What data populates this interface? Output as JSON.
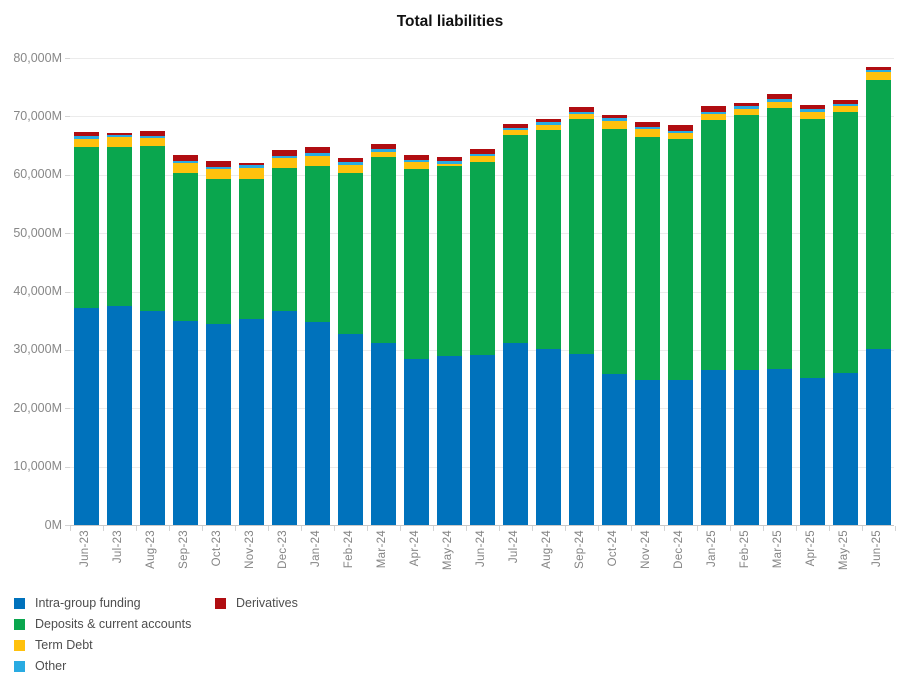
{
  "title": "Total liabilities",
  "chart_data": {
    "type": "bar",
    "stacked": true,
    "title": "Total liabilities",
    "unit": "M",
    "grid": "horizontal",
    "legend_position": "bottom-left",
    "ylim": [
      0,
      80000
    ],
    "categories": [
      "Jun-23",
      "Jul-23",
      "Aug-23",
      "Sep-23",
      "Oct-23",
      "Nov-23",
      "Dec-23",
      "Jan-24",
      "Feb-24",
      "Mar-24",
      "Apr-24",
      "May-24",
      "Jun-24",
      "Jul-24",
      "Aug-24",
      "Sep-24",
      "Oct-24",
      "Nov-24",
      "Dec-24",
      "Jan-25",
      "Feb-25",
      "Mar-25",
      "Apr-25",
      "May-25",
      "Jun-25"
    ],
    "series": [
      {
        "name": "Intra-group funding",
        "color": "#0072BC",
        "values": [
          37100,
          37600,
          36700,
          35000,
          34400,
          35300,
          36700,
          34700,
          32700,
          31200,
          28400,
          29000,
          29100,
          31100,
          30100,
          29300,
          25900,
          24800,
          24900,
          26600,
          26600,
          26800,
          25100,
          26100,
          30200
        ]
      },
      {
        "name": "Deposits & current accounts",
        "color": "#0AA64E",
        "values": [
          27600,
          27100,
          28300,
          25300,
          24800,
          24000,
          24400,
          26800,
          27600,
          31800,
          32600,
          32500,
          33100,
          35700,
          37500,
          40300,
          42000,
          41700,
          41300,
          42800,
          43700,
          44700,
          44500,
          44700,
          46100
        ]
      },
      {
        "name": "Term Debt",
        "color": "#FFC10D",
        "values": [
          1500,
          1700,
          1300,
          1700,
          1800,
          1800,
          1800,
          1700,
          1400,
          900,
          1200,
          400,
          1000,
          800,
          900,
          800,
          1300,
          1300,
          900,
          1000,
          900,
          900,
          1200,
          1000,
          1300
        ]
      },
      {
        "name": "Other",
        "color": "#29ABE2",
        "values": [
          400,
          400,
          400,
          400,
          400,
          500,
          400,
          500,
          500,
          500,
          400,
          400,
          400,
          500,
          500,
          400,
          500,
          400,
          400,
          400,
          500,
          600,
          400,
          400,
          300
        ]
      },
      {
        "name": "Derivatives",
        "color": "#B00D11",
        "values": [
          800,
          400,
          800,
          1000,
          1000,
          500,
          900,
          1000,
          600,
          900,
          800,
          700,
          900,
          600,
          500,
          800,
          500,
          900,
          1000,
          1000,
          600,
          900,
          700,
          700,
          500
        ]
      }
    ],
    "y_ticks": [
      {
        "value": 0,
        "label": "0M"
      },
      {
        "value": 10000,
        "label": "10,000M"
      },
      {
        "value": 20000,
        "label": "20,000M"
      },
      {
        "value": 30000,
        "label": "30,000M"
      },
      {
        "value": 40000,
        "label": "40,000M"
      },
      {
        "value": 50000,
        "label": "50,000M"
      },
      {
        "value": 60000,
        "label": "60,000M"
      },
      {
        "value": 70000,
        "label": "70,000M"
      },
      {
        "value": 80000,
        "label": "80,000M"
      }
    ]
  },
  "legend": {
    "column_of_series": [
      0,
      0,
      0,
      0,
      1
    ]
  }
}
